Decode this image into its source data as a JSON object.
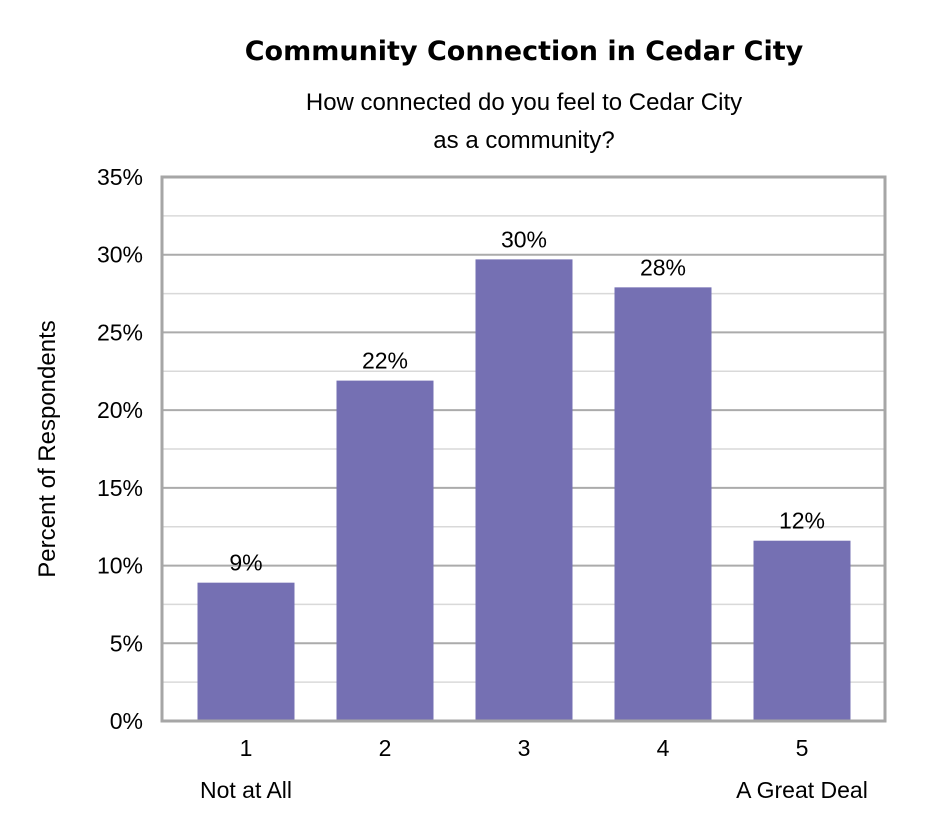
{
  "chart_data": {
    "type": "bar",
    "title": "Community Connection in Cedar City",
    "subtitle": [
      "How connected do you feel to Cedar City",
      "as a community?"
    ],
    "xlabel": "",
    "ylabel": "Percent of Respondents",
    "categories": [
      "1",
      "2",
      "3",
      "4",
      "5"
    ],
    "category_sublabels": [
      "Not at All",
      "",
      "",
      "",
      "A Great Deal"
    ],
    "values": [
      8.9,
      21.9,
      29.7,
      27.9,
      11.6
    ],
    "data_labels": [
      "9%",
      "22%",
      "30%",
      "28%",
      "12%"
    ],
    "ylim": [
      0,
      35
    ],
    "yticks": [
      "0%",
      "5%",
      "10%",
      "15%",
      "20%",
      "25%",
      "30%",
      "35%"
    ],
    "grid": true,
    "legend": "none",
    "colors": {
      "bar": "#7570b3",
      "grid_major": "#ababab",
      "grid_minor": "#d9d9d9",
      "frame": "#a6a6a6"
    }
  }
}
